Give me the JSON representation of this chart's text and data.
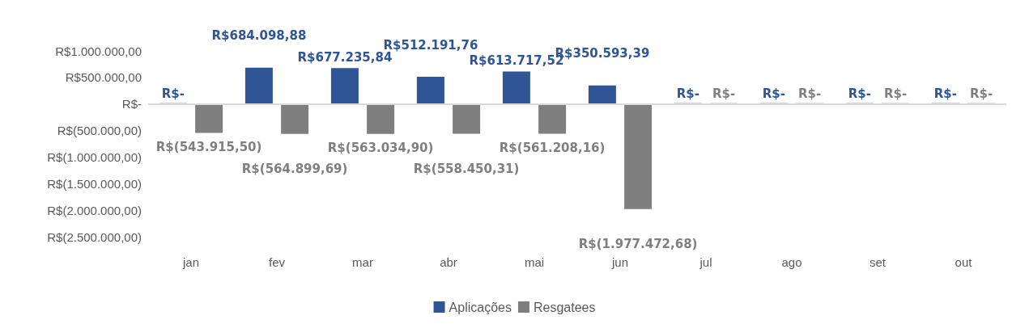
{
  "chart_data": {
    "type": "bar",
    "categories": [
      "jan",
      "fev",
      "mar",
      "abr",
      "mai",
      "jun",
      "jul",
      "ago",
      "set",
      "out"
    ],
    "series": [
      {
        "name": "Aplicações",
        "color": "#2f5597",
        "values": [
          0,
          684098.88,
          677235.84,
          512191.76,
          613717.52,
          350593.39,
          0,
          0,
          0,
          0
        ],
        "value_labels": [
          "R$-",
          "R$684.098,88",
          "R$677.235,84",
          "R$512.191,76",
          "R$613.717,52",
          "R$350.593,39",
          "R$-",
          "R$-",
          "R$-",
          "R$-"
        ]
      },
      {
        "name": "Resgatees",
        "color": "#7f7f7f",
        "values": [
          -543915.5,
          -564899.69,
          -563034.9,
          -558450.31,
          -561208.16,
          -1977472.68,
          0,
          0,
          0,
          0
        ],
        "value_labels": [
          "R$(543.915,50)",
          "R$(564.899,69)",
          "R$(563.034,90)",
          "R$(558.450,31)",
          "R$(561.208,16)",
          "R$(1.977.472,68)",
          "R$-",
          "R$-",
          "R$-",
          "R$-"
        ]
      }
    ],
    "ylim": [
      -2500000,
      1000000
    ],
    "yticks": [
      {
        "value": 1000000,
        "label": "R$1.000.000,00"
      },
      {
        "value": 500000,
        "label": "R$500.000,00"
      },
      {
        "value": 0,
        "label": "R$-"
      },
      {
        "value": -500000,
        "label": "R$(500.000,00)"
      },
      {
        "value": -1000000,
        "label": "R$(1.000.000,00)"
      },
      {
        "value": -1500000,
        "label": "R$(1.500.000,00)"
      },
      {
        "value": -2000000,
        "label": "R$(2.000.000,00)"
      },
      {
        "value": -2500000,
        "label": "R$(2.500.000,00)"
      }
    ],
    "ref_lines": [
      {
        "axis": "y",
        "value": 0,
        "color": "#d9d9d9"
      }
    ],
    "grid": false,
    "legend": "bottom"
  }
}
